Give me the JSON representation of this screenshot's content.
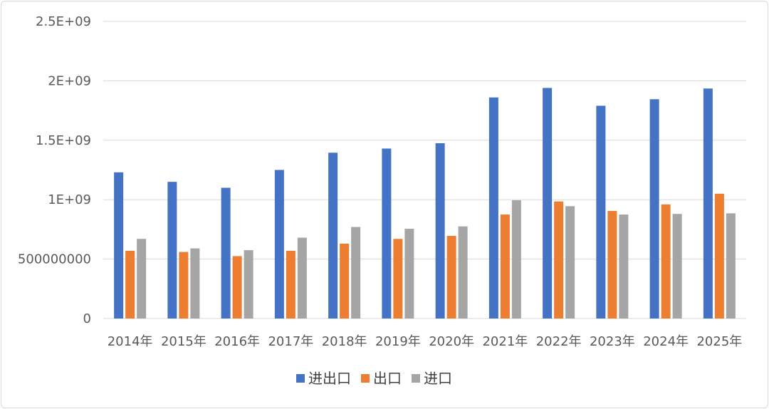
{
  "chart_data": {
    "type": "bar",
    "title": "",
    "xlabel": "",
    "ylabel": "",
    "ylim": [
      0,
      2500000000
    ],
    "y_ticks": [
      0,
      500000000,
      1000000000,
      1500000000,
      2000000000,
      2500000000
    ],
    "y_tick_labels": [
      "0",
      "500000000",
      "1E+09",
      "1.5E+09",
      "2E+09",
      "2.5E+09"
    ],
    "grid": true,
    "legend_position": "bottom",
    "categories": [
      "2014年",
      "2015年",
      "2016年",
      "2017年",
      "2018年",
      "2019年",
      "2020年",
      "2021年",
      "2022年",
      "2023年",
      "2024年",
      "2025年"
    ],
    "series": [
      {
        "name": "进出口",
        "color": "#4472c4",
        "values": [
          1230000000,
          1150000000,
          1100000000,
          1250000000,
          1395000000,
          1430000000,
          1475000000,
          1860000000,
          1940000000,
          1790000000,
          1845000000,
          1935000000
        ]
      },
      {
        "name": "出口",
        "color": "#ed7d31",
        "values": [
          570000000,
          560000000,
          525000000,
          570000000,
          630000000,
          670000000,
          695000000,
          875000000,
          985000000,
          905000000,
          960000000,
          1050000000
        ]
      },
      {
        "name": "进口",
        "color": "#a5a5a5",
        "values": [
          670000000,
          590000000,
          575000000,
          680000000,
          770000000,
          755000000,
          775000000,
          995000000,
          945000000,
          875000000,
          880000000,
          885000000
        ]
      }
    ]
  }
}
